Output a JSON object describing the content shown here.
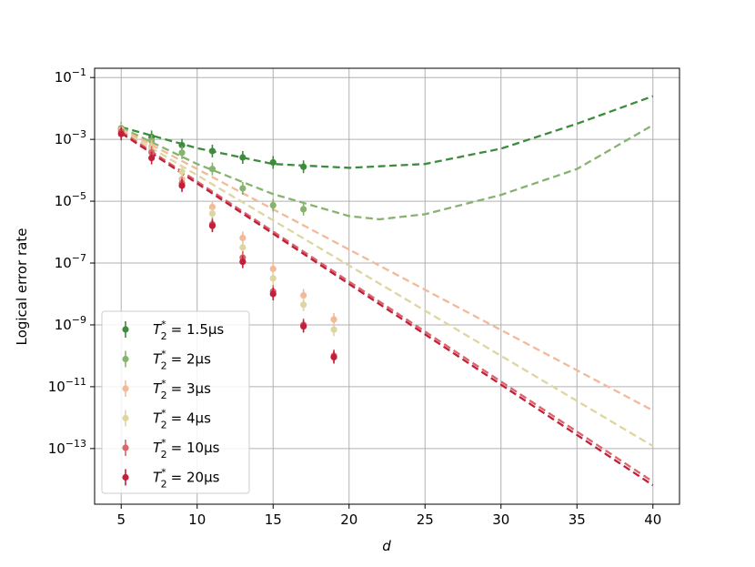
{
  "chart_data": {
    "type": "scatter",
    "title": "",
    "xlabel": "d",
    "ylabel": "Logical error rate",
    "x_scale": "linear",
    "y_scale": "log",
    "xlim": [
      3.25,
      41.75
    ],
    "ylim_log10": [
      -14.8,
      -0.7
    ],
    "x_ticks": [
      5,
      10,
      15,
      20,
      25,
      30,
      35,
      40
    ],
    "y_ticks_log10": [
      -13,
      -11,
      -9,
      -7,
      -5,
      -3,
      -1
    ],
    "grid": true,
    "legend_position": "lower-left",
    "fit_line_style": "dashed",
    "series": [
      {
        "name_main": "T",
        "name_sub": "2",
        "name_sup": "*",
        "name_value": "= 1.5μs",
        "color": "#3d8b3d",
        "points": [
          {
            "x": 5,
            "y": 0.0022
          },
          {
            "x": 7,
            "y": 0.0012
          },
          {
            "x": 9,
            "y": 0.00065
          },
          {
            "x": 11,
            "y": 0.00042
          },
          {
            "x": 13,
            "y": 0.00026
          },
          {
            "x": 15,
            "y": 0.00018
          },
          {
            "x": 17,
            "y": 0.00013
          }
        ],
        "fit": {
          "x": [
            5,
            10,
            15,
            20,
            25,
            30,
            35,
            40
          ],
          "y": [
            0.0025,
            0.00052,
            0.00016,
            0.00012,
            0.00016,
            0.0005,
            0.0032,
            0.025
          ]
        }
      },
      {
        "name_main": "T",
        "name_sub": "2",
        "name_sup": "*",
        "name_value": "= 2μs",
        "color": "#86b36e",
        "points": [
          {
            "x": 5,
            "y": 0.0023
          },
          {
            "x": 7,
            "y": 0.0009
          },
          {
            "x": 9,
            "y": 0.00037
          },
          {
            "x": 11,
            "y": 0.00011
          },
          {
            "x": 13,
            "y": 2.6e-05
          },
          {
            "x": 15,
            "y": 7.4e-06
          },
          {
            "x": 17,
            "y": 5.5e-06
          }
        ],
        "fit": {
          "x": [
            5,
            10,
            15,
            20,
            22,
            25,
            30,
            35,
            40
          ],
          "y": [
            0.0024,
            0.00016,
            1.7e-05,
            3.3e-06,
            2.6e-06,
            3.8e-06,
            1.6e-05,
            0.00011,
            0.0029
          ]
        }
      },
      {
        "name_main": "T",
        "name_sub": "2",
        "name_sup": "*",
        "name_value": "= 3μs",
        "color": "#f2b99a",
        "points": [
          {
            "x": 5,
            "y": 0.002
          },
          {
            "x": 7,
            "y": 0.0006
          },
          {
            "x": 9,
            "y": 5.2e-05
          },
          {
            "x": 11,
            "y": 6.5e-06
          },
          {
            "x": 13,
            "y": 6.5e-07
          },
          {
            "x": 15,
            "y": 6.5e-08
          },
          {
            "x": 17,
            "y": 9e-09
          },
          {
            "x": 19,
            "y": 1.5e-09
          }
        ],
        "fit": {
          "x": [
            5,
            40
          ],
          "y": [
            0.0022,
            1.7e-12
          ]
        }
      },
      {
        "name_main": "T",
        "name_sub": "2",
        "name_sup": "*",
        "name_value": "= 4μs",
        "color": "#ddd6a0",
        "points": [
          {
            "x": 5,
            "y": 0.002
          },
          {
            "x": 7,
            "y": 0.0005
          },
          {
            "x": 9,
            "y": 9e-05
          },
          {
            "x": 11,
            "y": 4e-06
          },
          {
            "x": 13,
            "y": 3.2e-07
          },
          {
            "x": 15,
            "y": 3.2e-08
          },
          {
            "x": 17,
            "y": 4.5e-09
          },
          {
            "x": 19,
            "y": 7e-10
          }
        ],
        "fit": {
          "x": [
            5,
            40
          ],
          "y": [
            0.002,
            1.2e-13
          ]
        }
      },
      {
        "name_main": "T",
        "name_sub": "2",
        "name_sup": "*",
        "name_value": "= 10μs",
        "color": "#d9666a",
        "points": [
          {
            "x": 5,
            "y": 0.0018
          },
          {
            "x": 7,
            "y": 0.00038
          },
          {
            "x": 9,
            "y": 3.8e-05
          },
          {
            "x": 11,
            "y": 1.8e-06
          },
          {
            "x": 13,
            "y": 1.5e-07
          },
          {
            "x": 15,
            "y": 1.2e-08
          },
          {
            "x": 17,
            "y": 1e-09
          },
          {
            "x": 19,
            "y": 1e-10
          }
        ],
        "fit": {
          "x": [
            5,
            40
          ],
          "y": [
            0.0018,
            8.5e-15
          ]
        }
      },
      {
        "name_main": "T",
        "name_sub": "2",
        "name_sup": "*",
        "name_value": "= 20μs",
        "color": "#c21f3a",
        "points": [
          {
            "x": 5,
            "y": 0.0015
          },
          {
            "x": 7,
            "y": 0.00025
          },
          {
            "x": 9,
            "y": 3.2e-05
          },
          {
            "x": 11,
            "y": 1.6e-06
          },
          {
            "x": 13,
            "y": 1.1e-07
          },
          {
            "x": 15,
            "y": 1e-08
          },
          {
            "x": 17,
            "y": 9e-10
          },
          {
            "x": 19,
            "y": 9e-11
          }
        ],
        "fit": {
          "x": [
            5,
            40
          ],
          "y": [
            0.0016,
            6.5e-15
          ]
        }
      }
    ]
  }
}
